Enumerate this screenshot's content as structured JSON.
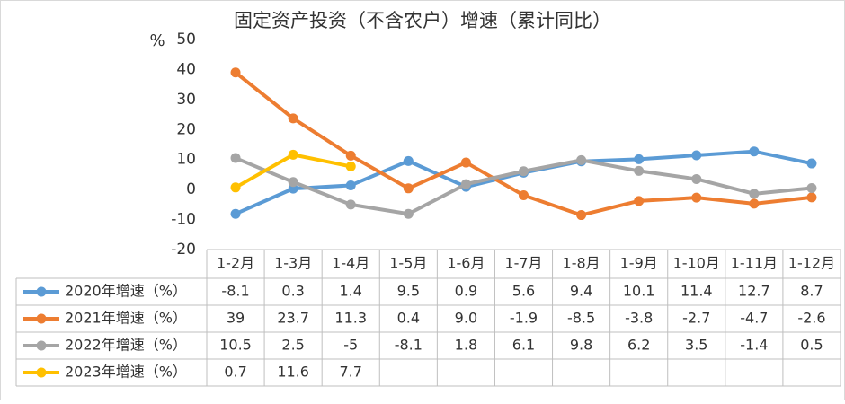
{
  "chart_data": {
    "type": "line",
    "title": "固定资产投资（不含农户）增速（累计同比）",
    "y_label": "%",
    "categories": [
      "1-2月",
      "1-3月",
      "1-4月",
      "1-5月",
      "1-6月",
      "1-7月",
      "1-8月",
      "1-9月",
      "1-10月",
      "1-11月",
      "1-12月"
    ],
    "series": [
      {
        "name": "2020年增速（%）",
        "color": "#5b9bd5",
        "values": [
          -8.1,
          0.3,
          1.4,
          9.5,
          0.9,
          5.6,
          9.4,
          10.1,
          11.4,
          12.7,
          8.7
        ]
      },
      {
        "name": "2021年增速（%）",
        "color": "#ed7d31",
        "values": [
          39,
          23.7,
          11.3,
          0.4,
          9,
          -1.9,
          -8.5,
          -3.8,
          -2.7,
          -4.7,
          -2.6
        ],
        "value_labels": [
          "39",
          "23.7",
          "11.3",
          "0.4",
          "9.0",
          "-1.9",
          "-8.5",
          "-3.8",
          "-2.7",
          "-4.7",
          "-2.6"
        ]
      },
      {
        "name": "2022年增速（%）",
        "color": "#a5a5a5",
        "values": [
          10.5,
          2.5,
          -5,
          -8.1,
          1.8,
          6.1,
          9.8,
          6.2,
          3.5,
          -1.4,
          0.5
        ]
      },
      {
        "name": "2023年增速（%）",
        "color": "#ffc000",
        "values": [
          0.7,
          11.6,
          7.7,
          null,
          null,
          null,
          null,
          null,
          null,
          null,
          null
        ]
      }
    ],
    "ylim": [
      -20,
      50
    ],
    "yticks": [
      -20,
      -10,
      0,
      10,
      20,
      30,
      40,
      50
    ],
    "grid": false,
    "data_table": true
  }
}
